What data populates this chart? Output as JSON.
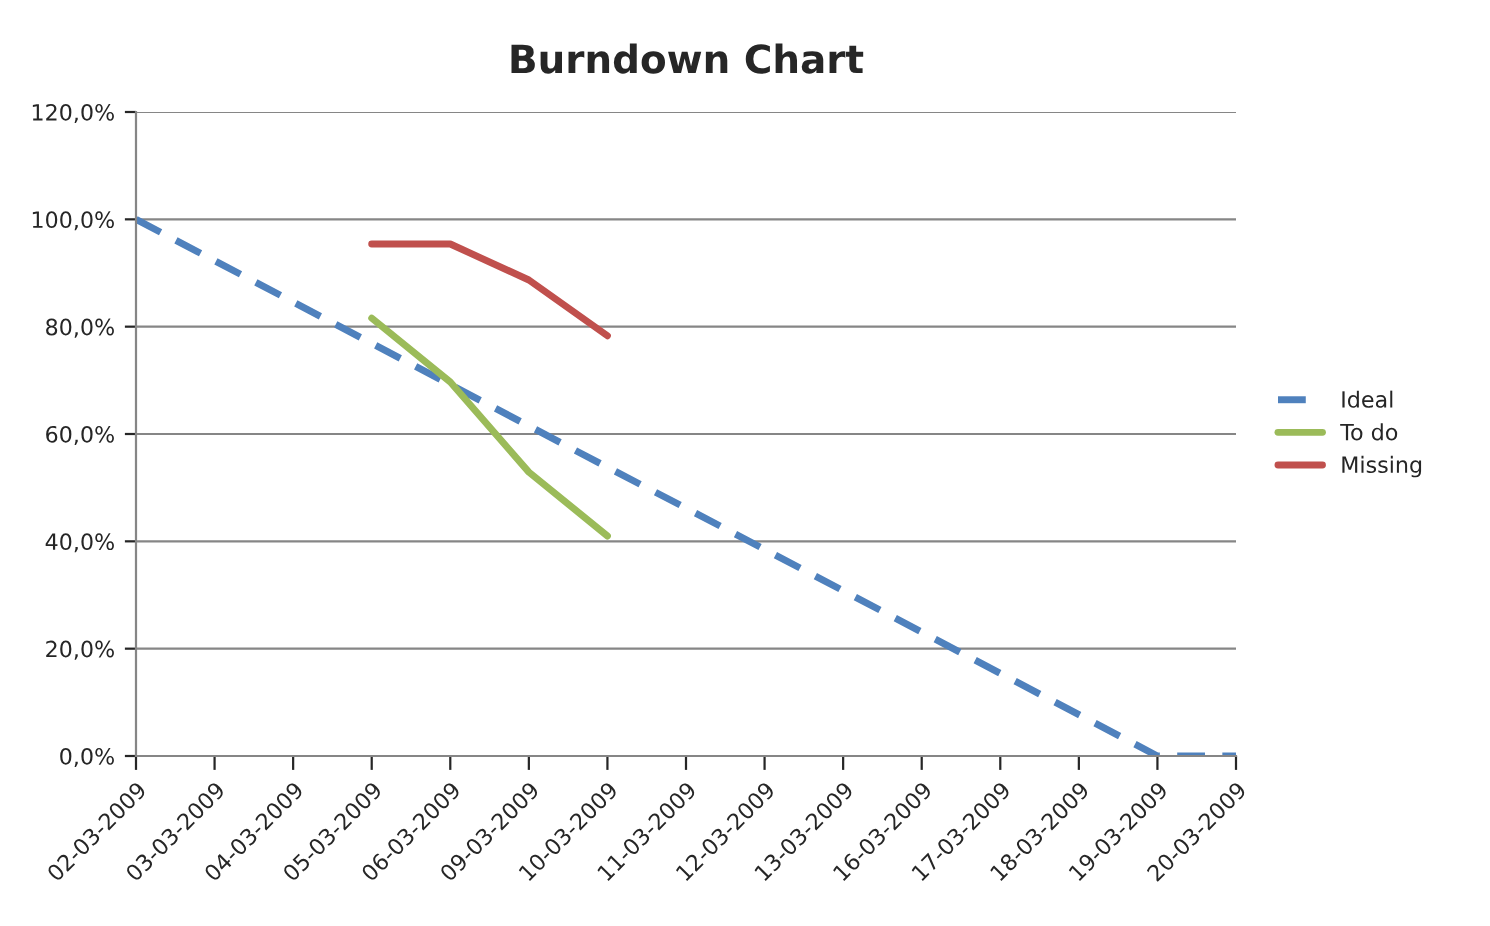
{
  "chart_data": {
    "type": "line",
    "title": "Burndown Chart",
    "categories": [
      "02-03-2009",
      "03-03-2009",
      "04-03-2009",
      "05-03-2009",
      "06-03-2009",
      "09-03-2009",
      "10-03-2009",
      "11-03-2009",
      "12-03-2009",
      "13-03-2009",
      "16-03-2009",
      "17-03-2009",
      "18-03-2009",
      "19-03-2009",
      "20-03-2009"
    ],
    "series": [
      {
        "name": "Ideal",
        "color": "#4f81bd",
        "line_style": "dashed",
        "values": [
          100,
          92.3,
          84.6,
          76.9,
          69.2,
          61.5,
          53.8,
          46.2,
          38.5,
          30.8,
          23.1,
          15.4,
          7.7,
          0,
          0
        ]
      },
      {
        "name": "To do",
        "color": "#9bbb59",
        "line_style": "solid",
        "values": [
          null,
          null,
          null,
          81.6,
          69.7,
          52.9,
          41.0,
          null,
          null,
          null,
          null,
          null,
          null,
          null,
          null
        ]
      },
      {
        "name": "Missing",
        "color": "#c0504d",
        "line_style": "solid",
        "values": [
          null,
          null,
          null,
          95.4,
          95.4,
          88.7,
          78.3,
          null,
          null,
          null,
          null,
          null,
          null,
          null,
          null
        ]
      }
    ],
    "ylim": [
      0,
      120
    ],
    "yticks": [
      {
        "value": 0,
        "label": "0,0%"
      },
      {
        "value": 20,
        "label": "20,0%"
      },
      {
        "value": 40,
        "label": "40,0%"
      },
      {
        "value": 60,
        "label": "60,0%"
      },
      {
        "value": 80,
        "label": "80,0%"
      },
      {
        "value": 100,
        "label": "100,0%"
      },
      {
        "value": 120,
        "label": "120,0%"
      }
    ],
    "grid": "y",
    "legend": "right",
    "marker": "none"
  }
}
